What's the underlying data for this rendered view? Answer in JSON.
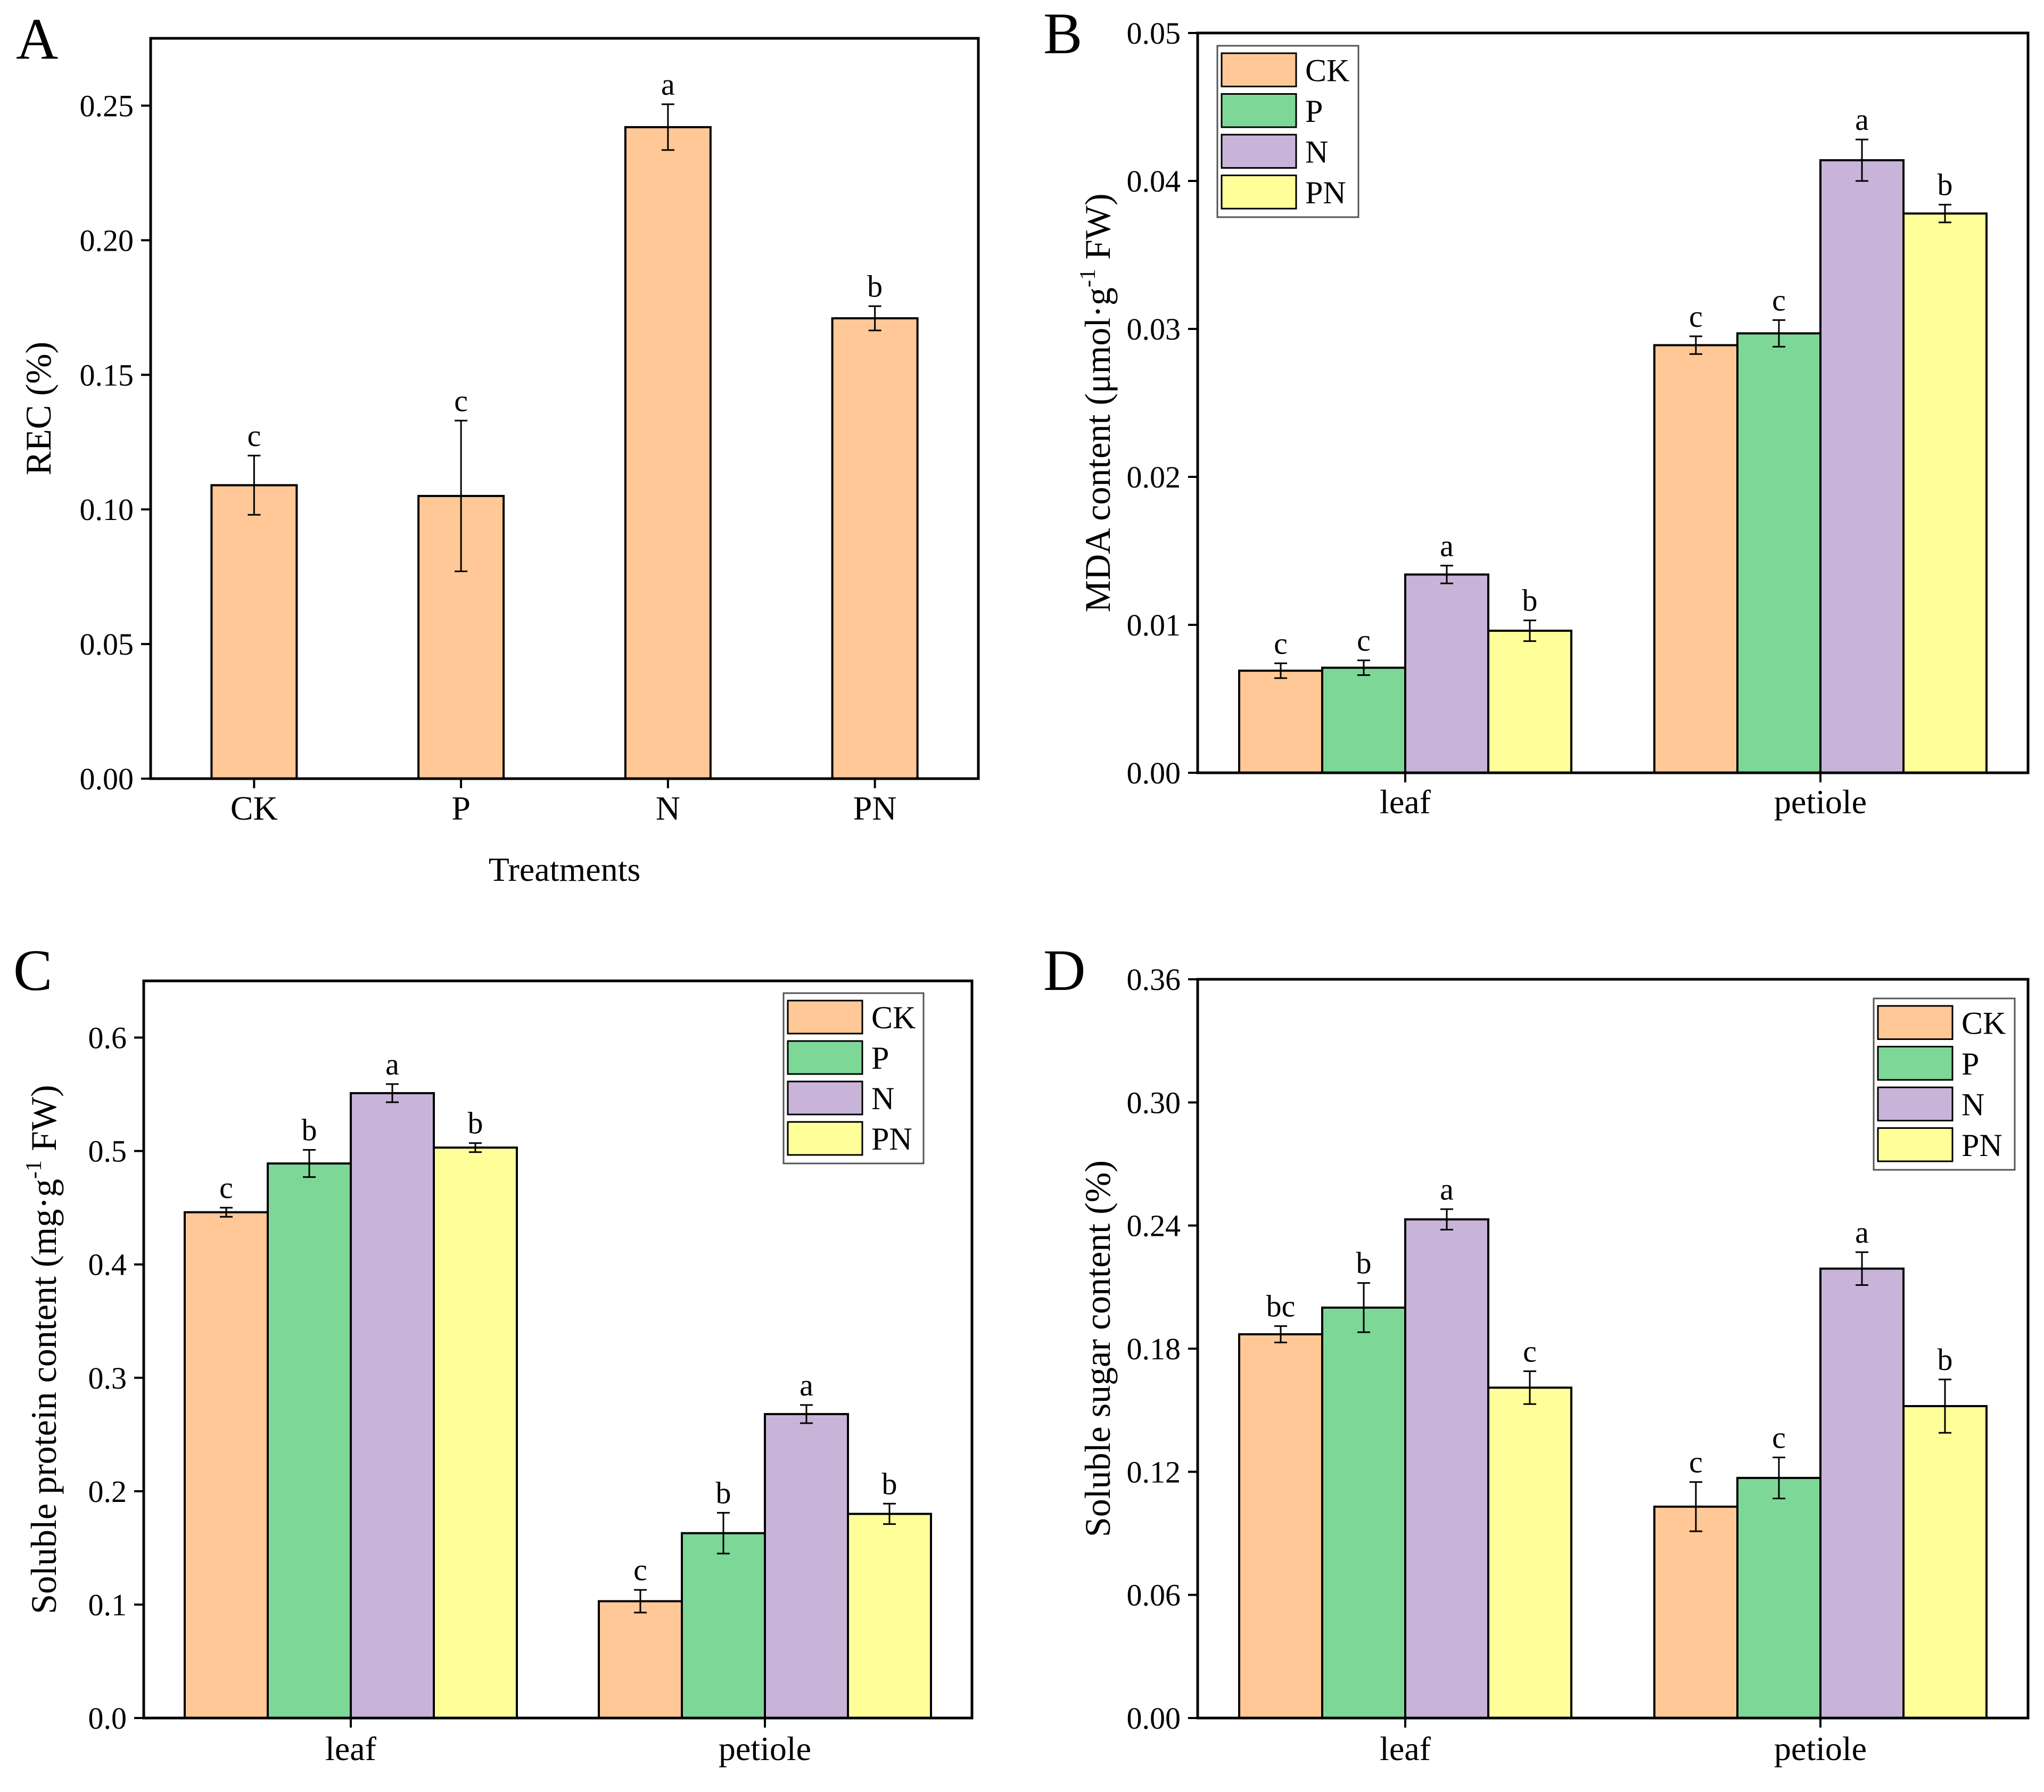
{
  "colors": {
    "CK": "#FFC896",
    "P": "#7DD898",
    "N": "#C8B4D8",
    "PN": "#FFFF9A"
  },
  "chart_data": [
    {
      "panel_label": "A",
      "type": "bar",
      "title": "",
      "xlabel": "Treatments",
      "ylabel": "REC (%)",
      "ylim": [
        0,
        0.275
      ],
      "yticks": [
        "0.00",
        "0.05",
        "0.10",
        "0.15",
        "0.20",
        "0.25"
      ],
      "categories": [
        "CK",
        "P",
        "N",
        "PN"
      ],
      "series": [
        {
          "name": "REC",
          "values": [
            0.109,
            0.105,
            0.242,
            0.171
          ],
          "errors": [
            0.011,
            0.028,
            0.0085,
            0.0045
          ],
          "letters": [
            "c",
            "c",
            "a",
            "b"
          ],
          "color_key": "CK"
        }
      ],
      "legend": null
    },
    {
      "panel_label": "B",
      "type": "bar",
      "title": "",
      "xlabel": "",
      "ylabel": "MDA content (μmol·g-1 FW)",
      "ylabel_parts": {
        "pre": "MDA content (μmol·g",
        "sup": "-1",
        "post": " FW)"
      },
      "ylim": [
        0,
        0.05
      ],
      "yticks": [
        "0.00",
        "0.01",
        "0.02",
        "0.03",
        "0.04",
        "0.05"
      ],
      "categories": [
        "leaf",
        "petiole"
      ],
      "series": [
        {
          "name": "CK",
          "values": [
            0.0069,
            0.0289
          ],
          "errors": [
            0.0005,
            0.0006
          ],
          "letters": [
            "c",
            "c"
          ]
        },
        {
          "name": "P",
          "values": [
            0.0071,
            0.0297
          ],
          "errors": [
            0.0005,
            0.0009
          ],
          "letters": [
            "c",
            "c"
          ]
        },
        {
          "name": "N",
          "values": [
            0.0134,
            0.0414
          ],
          "errors": [
            0.0006,
            0.0014
          ],
          "letters": [
            "a",
            "a"
          ]
        },
        {
          "name": "PN",
          "values": [
            0.0096,
            0.0378
          ],
          "errors": [
            0.0007,
            0.0006
          ],
          "letters": [
            "b",
            "b"
          ]
        }
      ],
      "legend": {
        "position": "top-left",
        "entries": [
          "CK",
          "P",
          "N",
          "PN"
        ]
      }
    },
    {
      "panel_label": "C",
      "type": "bar",
      "title": "",
      "xlabel": "",
      "ylabel": "Soluble protein content (mg·g-1 FW)",
      "ylabel_parts": {
        "pre": "Soluble protein content (mg·g",
        "sup": "-1",
        "post": " FW)"
      },
      "ylim": [
        0,
        0.65
      ],
      "yticks": [
        "0.0",
        "0.1",
        "0.2",
        "0.3",
        "0.4",
        "0.5",
        "0.6"
      ],
      "categories": [
        "leaf",
        "petiole"
      ],
      "series": [
        {
          "name": "CK",
          "values": [
            0.446,
            0.103
          ],
          "errors": [
            0.004,
            0.01
          ],
          "letters": [
            "c",
            "c"
          ]
        },
        {
          "name": "P",
          "values": [
            0.489,
            0.163
          ],
          "errors": [
            0.012,
            0.018
          ],
          "letters": [
            "b",
            "b"
          ]
        },
        {
          "name": "N",
          "values": [
            0.551,
            0.268
          ],
          "errors": [
            0.008,
            0.008
          ],
          "letters": [
            "a",
            "a"
          ]
        },
        {
          "name": "PN",
          "values": [
            0.503,
            0.18
          ],
          "errors": [
            0.004,
            0.009
          ],
          "letters": [
            "b",
            "b"
          ]
        }
      ],
      "legend": {
        "position": "top-right",
        "entries": [
          "CK",
          "P",
          "N",
          "PN"
        ]
      }
    },
    {
      "panel_label": "D",
      "type": "bar",
      "title": "",
      "xlabel": "",
      "ylabel": "Soluble sugar content (%)",
      "ylim": [
        0,
        0.36
      ],
      "yticks": [
        "0.00",
        "0.06",
        "0.12",
        "0.18",
        "0.24",
        "0.30",
        "0.36"
      ],
      "categories": [
        "leaf",
        "petiole"
      ],
      "series": [
        {
          "name": "CK",
          "values": [
            0.187,
            0.103
          ],
          "errors": [
            0.004,
            0.012
          ],
          "letters": [
            "bc",
            "c"
          ]
        },
        {
          "name": "P",
          "values": [
            0.2,
            0.117
          ],
          "errors": [
            0.012,
            0.01
          ],
          "letters": [
            "b",
            "c"
          ]
        },
        {
          "name": "N",
          "values": [
            0.243,
            0.219
          ],
          "errors": [
            0.005,
            0.008
          ],
          "letters": [
            "a",
            "a"
          ]
        },
        {
          "name": "PN",
          "values": [
            0.161,
            0.152
          ],
          "errors": [
            0.008,
            0.013
          ],
          "letters": [
            "c",
            "b"
          ]
        }
      ],
      "legend": {
        "position": "top-right",
        "entries": [
          "CK",
          "P",
          "N",
          "PN"
        ]
      }
    }
  ]
}
